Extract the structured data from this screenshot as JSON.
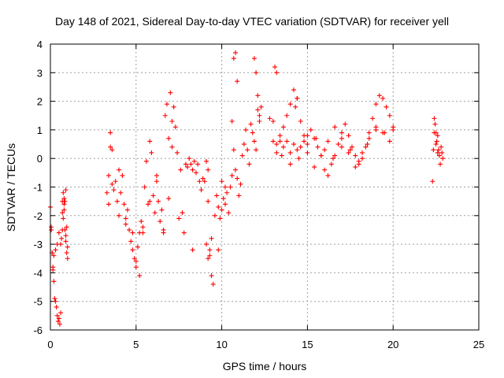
{
  "colors": {
    "series": "#ff0000",
    "grid": "#a0a0a0",
    "axis": "#000000"
  },
  "chart_data": {
    "type": "scatter",
    "marker": "plus",
    "title": "Day 148 of 2021, Sidereal Day-to-day VTEC variation (SDTVAR) for receiver yell",
    "xlabel": "GPS time / hours",
    "ylabel": "SDTVAR / TECUs",
    "xlim": [
      0,
      25
    ],
    "ylim": [
      -6,
      4
    ],
    "xticks": [
      0,
      5,
      10,
      15,
      20,
      25
    ],
    "yticks": [
      -6,
      -5,
      -4,
      -3,
      -2,
      -1,
      0,
      1,
      2,
      3,
      4
    ],
    "grid": true,
    "series": [
      {
        "name": "SDTVAR",
        "x": [
          0.0,
          0.05,
          0.1,
          0.15,
          0.2,
          0.25,
          0.3,
          0.35,
          0.4,
          0.45,
          0.5,
          0.55,
          0.6,
          0.65,
          0.7,
          0.75,
          0.8,
          0.85,
          0.9,
          0.95,
          1.0,
          0.05,
          0.1,
          0.15,
          0.2,
          0.3,
          0.4,
          0.5,
          0.6,
          0.7,
          0.8,
          0.9,
          1.0,
          0.7,
          0.75,
          0.8,
          0.85,
          0.9,
          0.95,
          3.3,
          3.4,
          3.5,
          3.6,
          3.7,
          3.8,
          3.9,
          4.0,
          4.1,
          4.2,
          4.3,
          4.4,
          4.5,
          4.6,
          4.7,
          4.8,
          4.9,
          5.0,
          5.1,
          5.2,
          5.3,
          5.4,
          5.5,
          5.6,
          5.7,
          5.8,
          5.9,
          6.0,
          6.1,
          6.2,
          6.3,
          6.4,
          6.5,
          6.6,
          6.7,
          6.8,
          6.9,
          7.0,
          7.1,
          7.2,
          7.3,
          7.4,
          3.4,
          3.5,
          3.6,
          4.0,
          4.4,
          4.8,
          5.0,
          5.2,
          5.4,
          5.8,
          6.2,
          6.6,
          6.9,
          7.1,
          7.6,
          7.7,
          7.8,
          7.9,
          8.0,
          8.1,
          8.2,
          8.3,
          8.4,
          8.5,
          8.6,
          8.7,
          8.8,
          8.3,
          7.5,
          8.9,
          9.0,
          9.1,
          9.2,
          9.3,
          9.4,
          9.5,
          9.6,
          9.7,
          9.8,
          9.9,
          10.0,
          10.1,
          10.2,
          10.3,
          9.1,
          9.2,
          9.3,
          9.4,
          9.2,
          9.8,
          10.0,
          10.2,
          10.4,
          10.5,
          10.6,
          10.7,
          10.8,
          10.9,
          11.0,
          11.1,
          11.2,
          11.3,
          11.4,
          11.5,
          11.6,
          11.7,
          11.8,
          11.9,
          12.0,
          12.1,
          12.2,
          12.3,
          10.6,
          10.7,
          10.8,
          11.9,
          12.0,
          12.1,
          12.2,
          10.9,
          12.8,
          13.0,
          13.2,
          13.4,
          13.6,
          13.8,
          14.0,
          14.2,
          14.4,
          14.6,
          14.8,
          15.0,
          15.2,
          15.4,
          15.6,
          15.8,
          16.0,
          16.2,
          16.4,
          16.6,
          16.8,
          17.0,
          17.2,
          17.4,
          17.6,
          17.8,
          18.0,
          18.2,
          18.4,
          18.6,
          18.8,
          19.0,
          19.2,
          19.4,
          19.6,
          19.8,
          20.0,
          13.2,
          13.4,
          13.6,
          13.8,
          14.0,
          14.2,
          14.4,
          14.6,
          14.8,
          15.0,
          15.4,
          15.8,
          16.2,
          16.6,
          17.0,
          17.4,
          17.8,
          18.2,
          18.6,
          19.0,
          19.4,
          19.8,
          13.0,
          13.5,
          14.0,
          14.5,
          15.0,
          15.5,
          16.0,
          16.5,
          17.0,
          17.5,
          18.0,
          18.5,
          19.0,
          19.5,
          20.0,
          13.1,
          13.2,
          14.3,
          14.4,
          22.3,
          22.35,
          22.4,
          22.45,
          22.5,
          22.55,
          22.6,
          22.65,
          22.7,
          22.75,
          22.8,
          22.85,
          22.9,
          22.4,
          22.5,
          22.6
        ],
        "y": [
          -1.7,
          -2.5,
          -3.3,
          -3.9,
          -4.3,
          -4.9,
          -5.0,
          -5.2,
          -5.5,
          -5.7,
          -5.6,
          -5.8,
          -5.4,
          -2.8,
          -2.5,
          -2.1,
          -1.6,
          -1.5,
          -1.1,
          -2.4,
          -3.5,
          -2.4,
          -3.3,
          -3.8,
          -3.4,
          -3.2,
          -3.0,
          -2.6,
          -3.0,
          -1.9,
          -1.4,
          -2.7,
          -3.1,
          -1.5,
          -1.2,
          -1.8,
          -2.5,
          -2.9,
          -3.3,
          -1.2,
          -0.6,
          0.9,
          0.3,
          -1.1,
          -0.8,
          -1.5,
          -0.4,
          -1.2,
          -0.6,
          -1.6,
          -2.1,
          -1.8,
          -2.5,
          -2.9,
          -3.2,
          -3.5,
          -3.8,
          -3.1,
          -2.6,
          -2.2,
          -2.6,
          -1.0,
          -0.1,
          -1.6,
          0.6,
          0.2,
          -1.3,
          -1.9,
          -0.8,
          -1.5,
          -2.2,
          -1.8,
          -2.6,
          1.5,
          1.9,
          0.7,
          2.3,
          1.3,
          1.8,
          1.1,
          0.2,
          -1.6,
          0.4,
          -0.9,
          -2.0,
          -2.3,
          -2.6,
          -3.6,
          -4.1,
          -2.4,
          -1.5,
          -0.6,
          -2.5,
          -1.4,
          0.4,
          -0.4,
          -1.9,
          -2.6,
          -0.2,
          -0.3,
          0.0,
          -0.2,
          -0.4,
          -0.1,
          -0.5,
          -0.2,
          -0.8,
          -1.1,
          -3.2,
          -2.1,
          -0.7,
          -0.8,
          -0.1,
          -0.4,
          -3.4,
          -4.1,
          -4.4,
          -2.0,
          -1.3,
          -3.2,
          -2.1,
          -1.8,
          -1.4,
          -1.6,
          -1.2,
          -3.0,
          -3.5,
          -3.2,
          -2.8,
          -1.5,
          -1.7,
          -0.8,
          -1.0,
          -1.9,
          -1.0,
          -0.6,
          0.3,
          -0.4,
          -0.7,
          -1.3,
          -0.9,
          0.1,
          0.5,
          1.0,
          0.3,
          -0.2,
          1.2,
          0.9,
          0.6,
          0.3,
          1.7,
          1.5,
          1.8,
          1.3,
          3.5,
          3.7,
          3.5,
          3.0,
          2.2,
          1.3,
          2.7,
          1.4,
          1.3,
          0.5,
          0.8,
          0.4,
          0.6,
          0.2,
          0.5,
          0.3,
          0.4,
          0.6,
          0.8,
          1.0,
          0.7,
          0.4,
          0.1,
          -0.4,
          -0.6,
          -0.2,
          0.1,
          0.5,
          0.9,
          1.2,
          0.8,
          0.4,
          0.1,
          -0.2,
          0.0,
          0.4,
          0.9,
          1.4,
          1.9,
          2.2,
          2.1,
          1.8,
          1.5,
          1.1,
          0.2,
          0.6,
          1.1,
          1.5,
          1.9,
          2.4,
          2.1,
          1.3,
          0.8,
          0.2,
          -0.3,
          0.1,
          0.6,
          1.1,
          0.7,
          0.2,
          -0.3,
          0.2,
          0.7,
          1.1,
          0.9,
          0.6,
          0.6,
          0.1,
          -0.2,
          0.0,
          0.5,
          0.7,
          0.3,
          0.0,
          0.4,
          0.3,
          -0.1,
          0.5,
          1.0,
          0.9,
          1.0,
          3.2,
          3.0,
          1.8,
          2.1,
          -0.8,
          0.3,
          1.4,
          1.2,
          0.9,
          0.6,
          0.8,
          0.3,
          0.1,
          -0.2,
          0.4,
          0.2,
          0.0,
          0.9,
          0.5,
          0.2
        ]
      }
    ]
  }
}
